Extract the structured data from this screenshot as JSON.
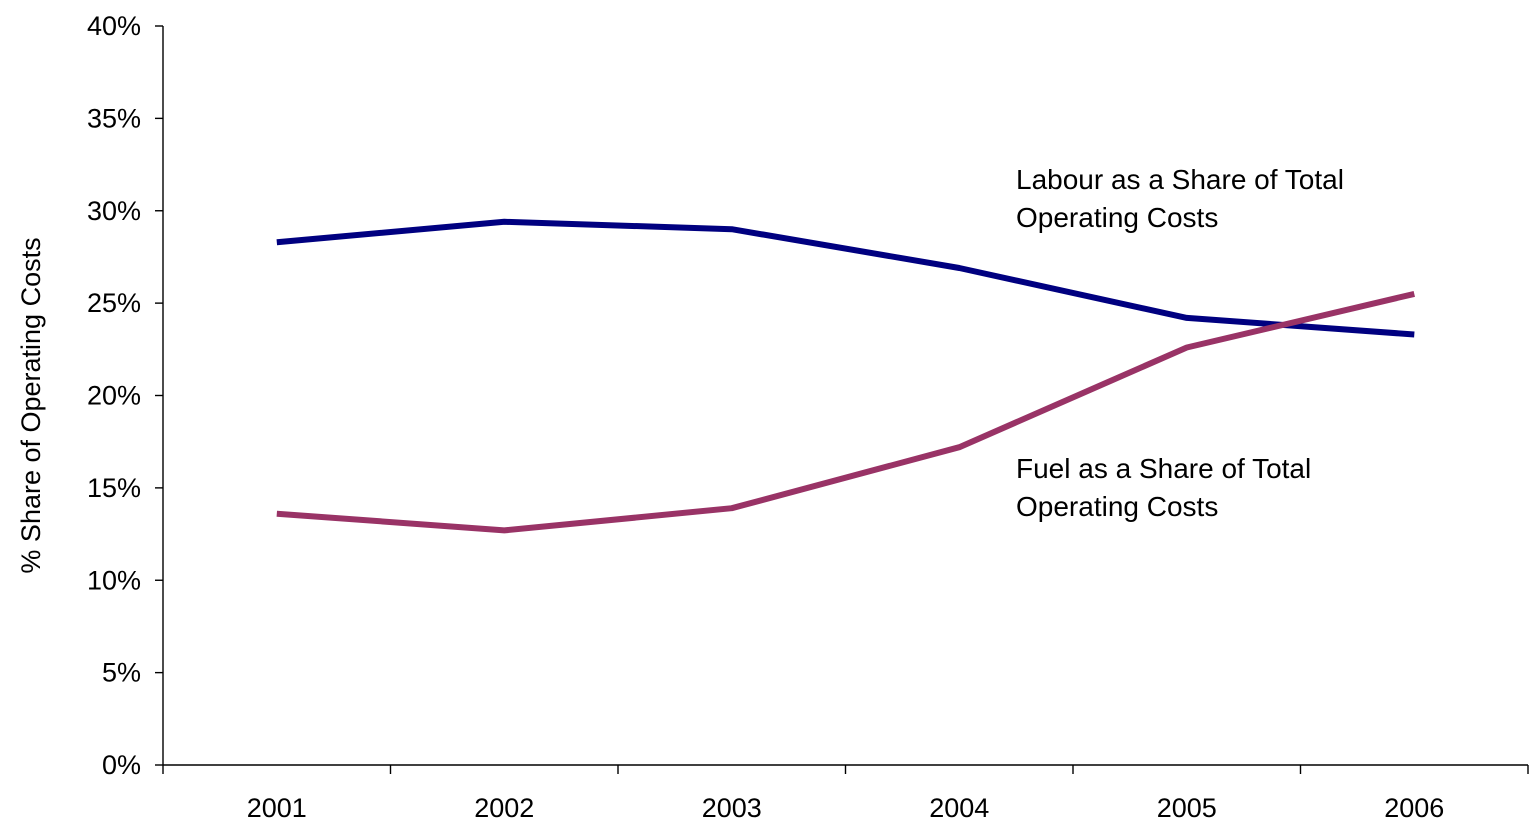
{
  "chart_data": {
    "type": "line",
    "title": "",
    "xlabel": "",
    "ylabel": "% Share of Operating Costs",
    "categories": [
      "2001",
      "2002",
      "2003",
      "2004",
      "2005",
      "2006"
    ],
    "ylim": [
      0,
      40
    ],
    "yticks": [
      0,
      5,
      10,
      15,
      20,
      25,
      30,
      35,
      40
    ],
    "ytick_labels": [
      "0%",
      "5%",
      "10%",
      "15%",
      "20%",
      "25%",
      "30%",
      "35%",
      "40%"
    ],
    "grid": false,
    "legend": "none",
    "series": [
      {
        "key": "labour",
        "color": "#000080",
        "values": [
          28.3,
          29.4,
          29.0,
          26.9,
          24.2,
          23.3
        ]
      },
      {
        "key": "fuel",
        "color": "#993366",
        "values": [
          13.6,
          12.7,
          13.9,
          17.2,
          22.6,
          25.5
        ]
      }
    ],
    "annotations": [
      {
        "series": "labour",
        "lines": [
          "Labour as a Share of Total",
          "Operating Costs"
        ]
      },
      {
        "series": "fuel",
        "lines": [
          "Fuel as a Share of Total",
          "Operating Costs"
        ]
      }
    ]
  }
}
